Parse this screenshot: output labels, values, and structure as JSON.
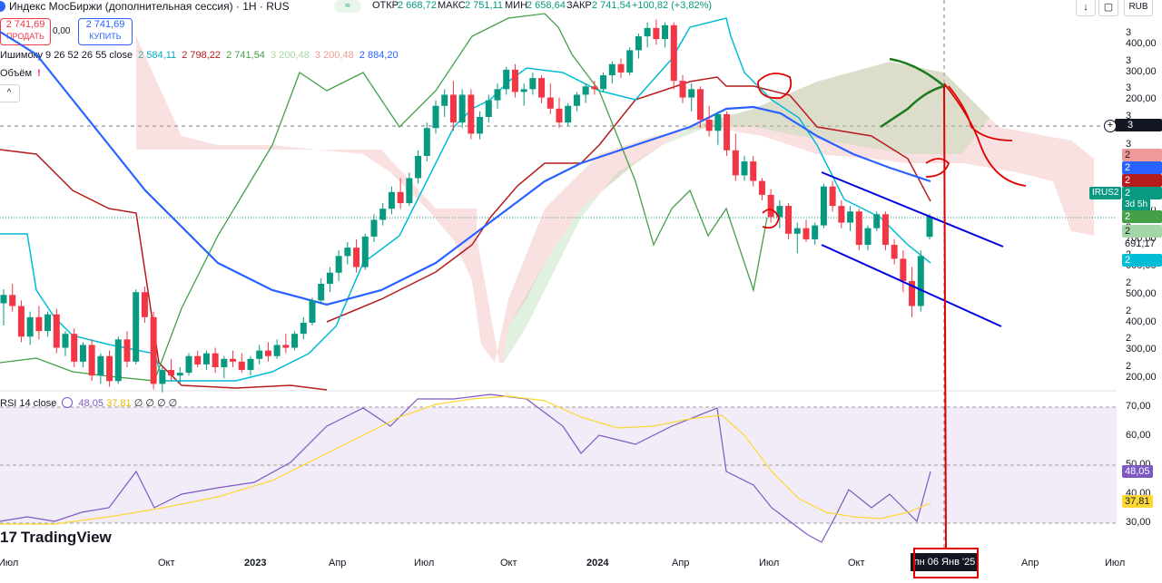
{
  "header": {
    "title": "Индекс МосБиржи (дополнительная сессия) · 1Н · RUS",
    "badge": "≈",
    "open_label": "ОТКР",
    "open": "2 668,72",
    "high_label": "МАКС",
    "high": "2 751,11",
    "low_label": "МИН",
    "low": "2 658,64",
    "close_label": "ЗАКР",
    "close": "2 741,54",
    "change": "+100,82 (+3,82%)",
    "currency": "RUB",
    "arrow_icon": "↓",
    "fullscreen_icon": "▢"
  },
  "trade": {
    "sell_price": "2 741,69",
    "sell_label": "ПРОДАТЬ",
    "spread": "0,00",
    "buy_price": "2 741,69",
    "buy_label": "КУПИТЬ"
  },
  "ichimoku": {
    "name": "Ишимоку 9 26 52 26 55 close",
    "v1": "2 584,11",
    "v2": "2 798,22",
    "v3": "2 741,54",
    "v4": "3 200,48",
    "v5": "3 200,48",
    "v6": "2 884,20"
  },
  "volume": {
    "name": "Объём",
    "warn": "!",
    "collapse_icon": "^"
  },
  "rsi": {
    "name": "RSI 14 close",
    "v1": "48,05",
    "v2": "37,81",
    "v3": "∅ ∅ ∅ ∅"
  },
  "price_axis": [
    "3 400,00",
    "3 300,00",
    "3 200,00",
    "3 100,00",
    "3 000,00",
    "2 900,00",
    "2 800,00",
    "2 700,00",
    "2 600,00",
    "2 500,00",
    "2 400,00",
    "2 300,00",
    "2 200,00"
  ],
  "rsi_axis": [
    "70,00",
    "60,00",
    "50,00",
    "40,00",
    "30,00"
  ],
  "price_tags": {
    "crosshair": "3 071,69",
    "red1": "2 946,00",
    "blue": "2 884,20",
    "red2": "2 798,22",
    "symbol": "IRUS2",
    "symbol_price": "2 741,54",
    "countdown": "3d 5h",
    "green": "2 741,54",
    "green2": "2 691,17",
    "cyan": "2 584,11",
    "rsi": "48,05",
    "rsi_ma": "37,81"
  },
  "time_axis": [
    "Окт",
    "2023",
    "Апр",
    "Июл",
    "Окт",
    "2024",
    "Апр",
    "Июл",
    "Окт",
    "Апр",
    "Июл"
  ],
  "time_axis_first": "Июл",
  "crosshair_date": "пн 06 Янв '25",
  "brand": "TradingView",
  "colors": {
    "up": "#089981",
    "down": "#f23645",
    "tenkan": "#00bcd4",
    "kijun": "#b71c1c",
    "chikou": "#43a047",
    "ma": "#2962ff",
    "cloud_green": "#a5d6a7",
    "cloud_red": "#ef9a9a",
    "rsi": "#7e57c2",
    "rsi_ma": "#fdd835",
    "annotation": "#e00000",
    "channel": "#0000e0"
  },
  "chart_data": {
    "type": "candlestick",
    "timeframe": "1W",
    "ylim": [
      2100,
      3450
    ],
    "candles_ohlc": [
      [
        2430,
        2480,
        2350,
        2460
      ],
      [
        2460,
        2500,
        2400,
        2420
      ],
      [
        2420,
        2440,
        2290,
        2310
      ],
      [
        2310,
        2400,
        2280,
        2380
      ],
      [
        2380,
        2420,
        2300,
        2330
      ],
      [
        2330,
        2400,
        2310,
        2390
      ],
      [
        2390,
        2410,
        2250,
        2270
      ],
      [
        2270,
        2330,
        2240,
        2320
      ],
      [
        2320,
        2340,
        2200,
        2220
      ],
      [
        2220,
        2290,
        2200,
        2280
      ],
      [
        2280,
        2300,
        2150,
        2170
      ],
      [
        2170,
        2250,
        2140,
        2240
      ],
      [
        2240,
        2260,
        2130,
        2150
      ],
      [
        2150,
        2310,
        2140,
        2300
      ],
      [
        2300,
        2330,
        2200,
        2220
      ],
      [
        2220,
        2480,
        2210,
        2470
      ],
      [
        2470,
        2490,
        2360,
        2380
      ],
      [
        2380,
        2400,
        2120,
        2140
      ],
      [
        2140,
        2200,
        2110,
        2190
      ],
      [
        2190,
        2230,
        2150,
        2170
      ],
      [
        2170,
        2200,
        2140,
        2180
      ],
      [
        2180,
        2250,
        2170,
        2240
      ],
      [
        2240,
        2260,
        2200,
        2210
      ],
      [
        2210,
        2260,
        2190,
        2250
      ],
      [
        2250,
        2270,
        2180,
        2200
      ],
      [
        2200,
        2240,
        2160,
        2230
      ],
      [
        2230,
        2260,
        2200,
        2220
      ],
      [
        2220,
        2250,
        2180,
        2190
      ],
      [
        2190,
        2240,
        2170,
        2230
      ],
      [
        2230,
        2280,
        2210,
        2260
      ],
      [
        2260,
        2290,
        2220,
        2240
      ],
      [
        2240,
        2300,
        2230,
        2280
      ],
      [
        2280,
        2320,
        2250,
        2270
      ],
      [
        2270,
        2330,
        2260,
        2320
      ],
      [
        2320,
        2380,
        2300,
        2360
      ],
      [
        2360,
        2450,
        2350,
        2440
      ],
      [
        2440,
        2520,
        2430,
        2500
      ],
      [
        2500,
        2560,
        2470,
        2540
      ],
      [
        2540,
        2620,
        2510,
        2600
      ],
      [
        2600,
        2650,
        2570,
        2630
      ],
      [
        2630,
        2660,
        2540,
        2560
      ],
      [
        2560,
        2680,
        2550,
        2670
      ],
      [
        2670,
        2750,
        2650,
        2730
      ],
      [
        2730,
        2790,
        2710,
        2770
      ],
      [
        2770,
        2850,
        2750,
        2830
      ],
      [
        2830,
        2880,
        2770,
        2790
      ],
      [
        2790,
        2900,
        2780,
        2880
      ],
      [
        2880,
        2980,
        2860,
        2960
      ],
      [
        2960,
        3080,
        2940,
        3060
      ],
      [
        3060,
        3160,
        3040,
        3140
      ],
      [
        3140,
        3200,
        3100,
        3180
      ],
      [
        3180,
        3230,
        3050,
        3080
      ],
      [
        3080,
        3200,
        3060,
        3180
      ],
      [
        3180,
        3200,
        3020,
        3040
      ],
      [
        3040,
        3120,
        3020,
        3100
      ],
      [
        3100,
        3180,
        3080,
        3160
      ],
      [
        3160,
        3220,
        3130,
        3200
      ],
      [
        3200,
        3280,
        3180,
        3270
      ],
      [
        3270,
        3290,
        3170,
        3190
      ],
      [
        3190,
        3220,
        3140,
        3200
      ],
      [
        3200,
        3260,
        3180,
        3240
      ],
      [
        3240,
        3250,
        3150,
        3170
      ],
      [
        3170,
        3220,
        3110,
        3130
      ],
      [
        3130,
        3170,
        3060,
        3080
      ],
      [
        3080,
        3150,
        3070,
        3140
      ],
      [
        3140,
        3190,
        3120,
        3180
      ],
      [
        3180,
        3220,
        3150,
        3210
      ],
      [
        3210,
        3230,
        3180,
        3200
      ],
      [
        3200,
        3260,
        3190,
        3250
      ],
      [
        3250,
        3300,
        3220,
        3290
      ],
      [
        3290,
        3310,
        3240,
        3260
      ],
      [
        3260,
        3350,
        3250,
        3340
      ],
      [
        3340,
        3400,
        3310,
        3390
      ],
      [
        3390,
        3440,
        3350,
        3420
      ],
      [
        3420,
        3450,
        3360,
        3380
      ],
      [
        3380,
        3440,
        3350,
        3430
      ],
      [
        3430,
        3440,
        3200,
        3230
      ],
      [
        3230,
        3250,
        3150,
        3170
      ],
      [
        3170,
        3220,
        3120,
        3200
      ],
      [
        3200,
        3210,
        3060,
        3090
      ],
      [
        3090,
        3140,
        3030,
        3050
      ],
      [
        3050,
        3120,
        3000,
        3110
      ],
      [
        3110,
        3120,
        2960,
        2980
      ],
      [
        2980,
        3040,
        2870,
        2890
      ],
      [
        2890,
        2960,
        2870,
        2940
      ],
      [
        2940,
        2960,
        2850,
        2870
      ],
      [
        2870,
        2880,
        2800,
        2820
      ],
      [
        2820,
        2840,
        2720,
        2740
      ],
      [
        2740,
        2800,
        2700,
        2780
      ],
      [
        2780,
        2790,
        2660,
        2680
      ],
      [
        2680,
        2720,
        2610,
        2700
      ],
      [
        2700,
        2730,
        2650,
        2660
      ],
      [
        2660,
        2720,
        2640,
        2710
      ],
      [
        2710,
        2860,
        2700,
        2850
      ],
      [
        2850,
        2870,
        2760,
        2780
      ],
      [
        2780,
        2800,
        2700,
        2720
      ],
      [
        2720,
        2780,
        2690,
        2760
      ],
      [
        2760,
        2770,
        2620,
        2640
      ],
      [
        2640,
        2710,
        2620,
        2700
      ],
      [
        2700,
        2760,
        2690,
        2750
      ],
      [
        2750,
        2760,
        2620,
        2640
      ],
      [
        2640,
        2660,
        2570,
        2590
      ],
      [
        2590,
        2620,
        2470,
        2510
      ],
      [
        2510,
        2560,
        2380,
        2420
      ],
      [
        2420,
        2620,
        2400,
        2600
      ],
      [
        2669,
        2751,
        2659,
        2742
      ]
    ],
    "moving_average_last": 2884.2,
    "rsi_last": 48.05,
    "rsi_ma_last": 37.81,
    "rsi_ylim": [
      25,
      75
    ]
  }
}
